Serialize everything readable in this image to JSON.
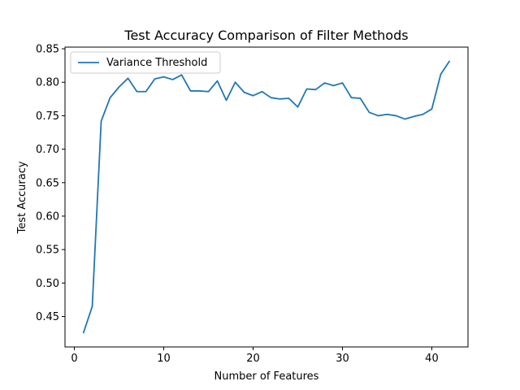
{
  "chart_data": {
    "type": "line",
    "title": "Test Accuracy Comparison of Filter Methods",
    "xlabel": "Number of Features",
    "ylabel": "Test Accuracy",
    "xlim": [
      -1.05,
      44.05
    ],
    "ylim": [
      0.4045,
      0.8525
    ],
    "xticks": [
      0,
      10,
      20,
      30,
      40
    ],
    "yticks": [
      0.45,
      0.5,
      0.55,
      0.6,
      0.65,
      0.7,
      0.75,
      0.8,
      0.85
    ],
    "ytick_labels": [
      "0.45",
      "0.50",
      "0.55",
      "0.60",
      "0.65",
      "0.70",
      "0.75",
      "0.80",
      "0.85"
    ],
    "grid": false,
    "legend_position": "top-left",
    "colors": {
      "series": "#1f77b4"
    },
    "series": [
      {
        "name": "Variance Threshold",
        "x": [
          1,
          2,
          3,
          4,
          5,
          6,
          7,
          8,
          9,
          10,
          11,
          12,
          13,
          14,
          15,
          16,
          17,
          18,
          19,
          20,
          21,
          22,
          23,
          24,
          25,
          26,
          27,
          28,
          29,
          30,
          31,
          32,
          33,
          34,
          35,
          36,
          37,
          38,
          39,
          40,
          41,
          42
        ],
        "y": [
          0.425,
          0.465,
          0.742,
          0.777,
          0.793,
          0.806,
          0.786,
          0.786,
          0.805,
          0.808,
          0.804,
          0.811,
          0.787,
          0.787,
          0.786,
          0.802,
          0.773,
          0.8,
          0.785,
          0.78,
          0.786,
          0.777,
          0.775,
          0.776,
          0.763,
          0.79,
          0.789,
          0.799,
          0.795,
          0.799,
          0.777,
          0.776,
          0.755,
          0.75,
          0.752,
          0.75,
          0.745,
          0.749,
          0.752,
          0.76,
          0.812,
          0.832
        ]
      }
    ]
  }
}
